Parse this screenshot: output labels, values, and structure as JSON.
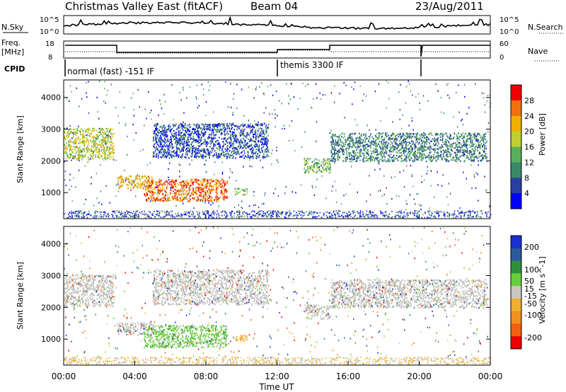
{
  "header": {
    "title": "Christmas Valley East (fitACF)",
    "beam": "Beam 04",
    "date": "23/Aug/2011"
  },
  "status_panel": {
    "nsky_label": "N.Sky",
    "nsearch_label": "N.Search",
    "freq_label_line1": "Freq.",
    "freq_label_line2": "[MHz]",
    "nave_label": "Nave",
    "cpid_label": "CPID",
    "left_ticks_top": [
      "10^5",
      "10^0"
    ],
    "right_ticks_top": [
      "10^5",
      "10^0"
    ],
    "left_ticks_freq": [
      "18",
      "8"
    ],
    "right_ticks_nave": [
      "60",
      "0"
    ],
    "mode_1": "normal (fast) -151 IF",
    "mode_2": "themis 3300 IF"
  },
  "colors": {
    "power_scale": [
      "#0000ff",
      "#2a3fa0",
      "#3a8a6a",
      "#5ab05a",
      "#bfcf30",
      "#f0b000",
      "#f07010",
      "#ee0000"
    ],
    "velocity_scale": [
      "#1a2fd0",
      "#2a5a9a",
      "#2f8f3f",
      "#66d03a",
      "#c8c8c0",
      "#f0b030",
      "#f09020",
      "#f06010",
      "#e80000"
    ],
    "ground_scatter": "#c0c0c0"
  },
  "chart_data": [
    {
      "type": "heatmap",
      "title": "",
      "xlabel": "Time UT",
      "ylabel": "Slant Range [km]",
      "x_ticks": [
        "00:00",
        "04:00",
        "08:00",
        "12:00",
        "16:00",
        "20:00",
        "00:00"
      ],
      "x_range_hours": [
        0,
        24
      ],
      "y_ticks": [
        1000,
        2000,
        3000,
        4000
      ],
      "ylim": [
        180,
        4550
      ],
      "colorbar": {
        "label": "Power [dB]",
        "ticks": [
          4,
          8,
          12,
          16,
          20,
          24,
          28
        ],
        "range": [
          0,
          32
        ]
      },
      "echo_regions": [
        {
          "t0": 0.0,
          "t1": 2.8,
          "r0": 2050,
          "r1": 3050,
          "level": "med-high"
        },
        {
          "t0": 3.0,
          "t1": 5.0,
          "r0": 1150,
          "r1": 1550,
          "level": "high"
        },
        {
          "t0": 4.5,
          "t1": 9.2,
          "r0": 750,
          "r1": 1450,
          "level": "very-high"
        },
        {
          "t0": 9.6,
          "t1": 10.3,
          "r0": 950,
          "r1": 1150,
          "level": "med"
        },
        {
          "t0": 5.0,
          "t1": 11.5,
          "r0": 2100,
          "r1": 3200,
          "level": "low"
        },
        {
          "t0": 13.5,
          "t1": 15.0,
          "r0": 1650,
          "r1": 2100,
          "level": "med"
        },
        {
          "t0": 15.0,
          "t1": 23.8,
          "r0": 2000,
          "r1": 2900,
          "level": "low-med"
        }
      ]
    },
    {
      "type": "heatmap",
      "title": "",
      "xlabel": "Time UT",
      "ylabel": "Slant Range [km]",
      "x_ticks": [
        "00:00",
        "04:00",
        "08:00",
        "12:00",
        "16:00",
        "20:00",
        "00:00"
      ],
      "x_range_hours": [
        0,
        24
      ],
      "y_ticks": [
        1000,
        2000,
        3000,
        4000
      ],
      "ylim": [
        180,
        4550
      ],
      "colorbar": {
        "label": "Velocity [m s^-1]",
        "ticks": [
          200,
          100,
          50,
          15,
          -15,
          -50,
          -100,
          -200
        ],
        "range": [
          -250,
          250
        ]
      },
      "echo_regions": [
        {
          "t0": 0.0,
          "t1": 2.8,
          "r0": 2050,
          "r1": 3050,
          "kind": "ground-scatter"
        },
        {
          "t0": 3.0,
          "t1": 5.0,
          "r0": 1150,
          "r1": 1550,
          "kind": "ground-scatter"
        },
        {
          "t0": 4.5,
          "t1": 9.2,
          "r0": 750,
          "r1": 1450,
          "kind": "positive-low"
        },
        {
          "t0": 9.6,
          "t1": 10.3,
          "r0": 950,
          "r1": 1150,
          "kind": "negative-low"
        },
        {
          "t0": 5.0,
          "t1": 11.5,
          "r0": 2100,
          "r1": 3200,
          "kind": "ground-scatter"
        },
        {
          "t0": 13.5,
          "t1": 15.0,
          "r0": 1650,
          "r1": 2100,
          "kind": "ground-scatter"
        },
        {
          "t0": 15.0,
          "t1": 23.8,
          "r0": 2000,
          "r1": 2900,
          "kind": "ground-scatter"
        }
      ]
    }
  ]
}
